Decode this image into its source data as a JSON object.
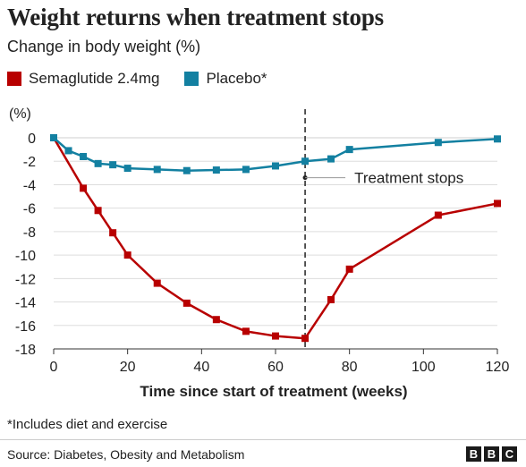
{
  "header": {
    "title": "Weight returns when treatment stops",
    "subtitle": "Change in body weight (%)"
  },
  "footer": {
    "footnote": "*Includes diet and exercise",
    "source": "Source: Diabetes, Obesity and Metabolism",
    "brand": [
      "B",
      "B",
      "C"
    ]
  },
  "chart_data": {
    "type": "line",
    "ylabel": "(%)",
    "xlabel": "Time since start of treatment (weeks)",
    "xlim": [
      0,
      120
    ],
    "ylim": [
      -18,
      0
    ],
    "xticks": [
      0,
      20,
      40,
      60,
      80,
      100,
      120
    ],
    "yticks": [
      0,
      -2,
      -4,
      -6,
      -8,
      -10,
      -12,
      -14,
      -16,
      -18
    ],
    "grid": "horizontal",
    "legend_position": "top-left",
    "series": [
      {
        "name": "Semaglutide 2.4mg",
        "color": "#b80000",
        "x": [
          0,
          8,
          12,
          16,
          20,
          28,
          36,
          44,
          52,
          60,
          68,
          75,
          80,
          104,
          120
        ],
        "y": [
          0,
          -4.3,
          -6.2,
          -8.1,
          -10.0,
          -12.4,
          -14.1,
          -15.5,
          -16.5,
          -16.9,
          -17.1,
          -13.8,
          -11.2,
          -6.6,
          -5.6
        ]
      },
      {
        "name": "Placebo*",
        "color": "#1380a1",
        "x": [
          0,
          4,
          8,
          12,
          16,
          20,
          28,
          36,
          44,
          52,
          60,
          68,
          75,
          80,
          104,
          120
        ],
        "y": [
          0,
          -1.1,
          -1.6,
          -2.2,
          -2.3,
          -2.6,
          -2.7,
          -2.8,
          -2.75,
          -2.7,
          -2.4,
          -2.0,
          -1.8,
          -1.0,
          -0.4,
          -0.1
        ]
      }
    ],
    "annotations": [
      {
        "text": "Treatment stops",
        "x": 68
      }
    ]
  }
}
